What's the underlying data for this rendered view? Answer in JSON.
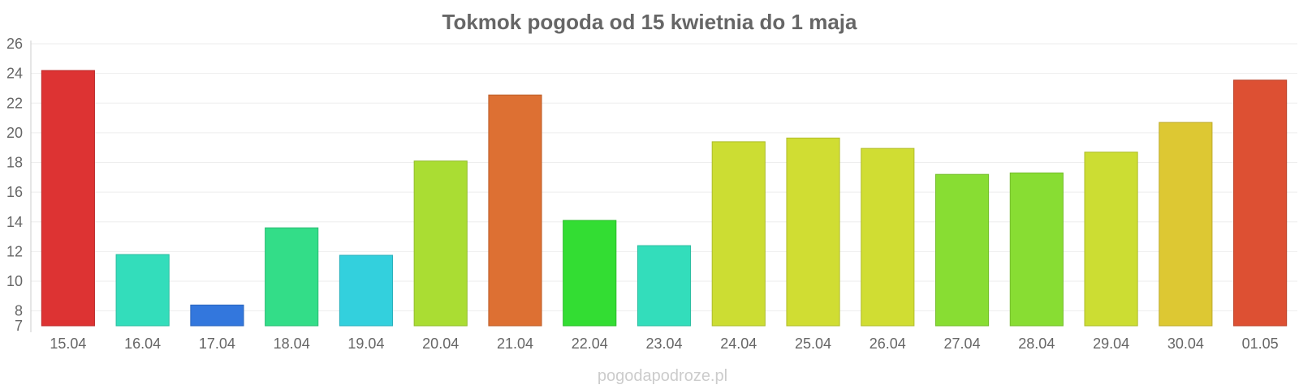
{
  "chart_data": {
    "type": "bar",
    "title": "Tokmok pogoda od 15 kwietnia do 1 maja",
    "xlabel": "",
    "ylabel": "",
    "ylim": [
      7,
      26
    ],
    "y_ticks": [
      7,
      8,
      10,
      12,
      14,
      16,
      18,
      20,
      22,
      24,
      26
    ],
    "grid": true,
    "categories": [
      "15.04",
      "16.04",
      "17.04",
      "18.04",
      "19.04",
      "20.04",
      "21.04",
      "22.04",
      "23.04",
      "24.04",
      "25.04",
      "26.04",
      "27.04",
      "28.04",
      "29.04",
      "30.04",
      "01.05"
    ],
    "values": [
      24.2,
      11.8,
      8.4,
      13.6,
      11.75,
      18.1,
      22.55,
      14.1,
      12.4,
      19.4,
      19.65,
      18.95,
      17.2,
      17.3,
      18.7,
      20.7,
      23.55
    ],
    "colors": [
      "#dd3333",
      "#33ddbb",
      "#3377dd",
      "#33dd88",
      "#33d0dd",
      "#aadd33",
      "#dd7033",
      "#33dd33",
      "#33ddbb",
      "#ccdd33",
      "#d0dd33",
      "#d0dd33",
      "#88dd33",
      "#88dd33",
      "#ccdd33",
      "#ddc833",
      "#dd5033"
    ]
  },
  "watermark": "pogodapodroze.pl"
}
